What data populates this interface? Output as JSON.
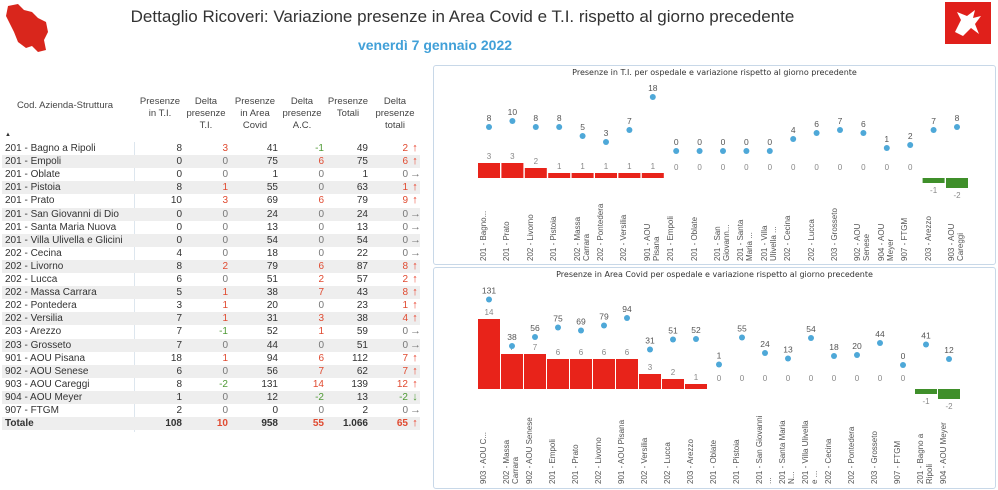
{
  "header": {
    "title": "Dettaglio Ricoveri: Variazione presenze in Area Covid e T.I. rispetto al giorno precedente",
    "date": "venerdì 7 gennaio 2022"
  },
  "colors": {
    "positive": "#e8231a",
    "negative": "#3f8f2a",
    "dot": "#4ea8d8",
    "date": "#41a0d8"
  },
  "table": {
    "headers": [
      "Cod. Azienda-Struttura",
      "Presenze in T.I.",
      "Delta presenze T.I.",
      "Presenze in Area Covid",
      "Delta presenze A.C.",
      "Presenze Totali",
      "Delta presenze totali"
    ],
    "sort_icon": "sort-ascending-icon",
    "rows": [
      [
        "201 - Bagno a Ripoli",
        "8",
        "3",
        "41",
        "-1",
        "49",
        "2"
      ],
      [
        "201 - Empoli",
        "0",
        "0",
        "75",
        "6",
        "75",
        "6"
      ],
      [
        "201 - Oblate",
        "0",
        "0",
        "1",
        "0",
        "1",
        "0"
      ],
      [
        "201 - Pistoia",
        "8",
        "1",
        "55",
        "0",
        "63",
        "1"
      ],
      [
        "201 - Prato",
        "10",
        "3",
        "69",
        "6",
        "79",
        "9"
      ],
      [
        "201 - San Giovanni di Dio",
        "0",
        "0",
        "24",
        "0",
        "24",
        "0"
      ],
      [
        "201 - Santa Maria Nuova",
        "0",
        "0",
        "13",
        "0",
        "13",
        "0"
      ],
      [
        "201 - Villa Ulivella e Glicini",
        "0",
        "0",
        "54",
        "0",
        "54",
        "0"
      ],
      [
        "202 - Cecina",
        "4",
        "0",
        "18",
        "0",
        "22",
        "0"
      ],
      [
        "202 - Livorno",
        "8",
        "2",
        "79",
        "6",
        "87",
        "8"
      ],
      [
        "202 - Lucca",
        "6",
        "0",
        "51",
        "2",
        "57",
        "2"
      ],
      [
        "202 - Massa Carrara",
        "5",
        "1",
        "38",
        "7",
        "43",
        "8"
      ],
      [
        "202 - Pontedera",
        "3",
        "1",
        "20",
        "0",
        "23",
        "1"
      ],
      [
        "202 - Versilia",
        "7",
        "1",
        "31",
        "3",
        "38",
        "4"
      ],
      [
        "203 - Arezzo",
        "7",
        "-1",
        "52",
        "1",
        "59",
        "0"
      ],
      [
        "203 - Grosseto",
        "7",
        "0",
        "44",
        "0",
        "51",
        "0"
      ],
      [
        "901 - AOU Pisana",
        "18",
        "1",
        "94",
        "6",
        "112",
        "7"
      ],
      [
        "902 - AOU Senese",
        "6",
        "0",
        "56",
        "7",
        "62",
        "7"
      ],
      [
        "903 - AOU Careggi",
        "8",
        "-2",
        "131",
        "14",
        "139",
        "12"
      ],
      [
        "904 - AOU Meyer",
        "1",
        "0",
        "12",
        "-2",
        "13",
        "-2"
      ],
      [
        "907 - FTGM",
        "2",
        "0",
        "0",
        "0",
        "2",
        "0"
      ]
    ],
    "total": [
      "Totale",
      "108",
      "10",
      "958",
      "55",
      "1.066",
      "65"
    ]
  },
  "chart_data": [
    {
      "type": "bar",
      "title": "Presenze in T.I. per ospedale e variazione rispetto al giorno precedente",
      "categories": [
        "201 - Bagno...",
        "201 - Prato",
        "202 - Livorno",
        "201 - Pistoia",
        "202 - Massa Carrara",
        "202 - Pontedera",
        "202 - Versilia",
        "901 - AOU Pisana",
        "201 - Empoli",
        "201 - Oblate",
        "201 - San Giovann...",
        "201 - Santa Maria ...",
        "201 - Villa Ulivella ...",
        "202 - Cecina",
        "202 - Lucca",
        "203 - Grosseto",
        "902 - AOU Senese",
        "904 - AOU Meyer",
        "907 - FTGM",
        "203 - Arezzo",
        "903 - AOU Careggi"
      ],
      "series": [
        {
          "type": "bar",
          "values": [
            3,
            3,
            2,
            1,
            1,
            1,
            1,
            1,
            0,
            0,
            0,
            0,
            0,
            0,
            0,
            0,
            0,
            0,
            0,
            -1,
            -2
          ]
        },
        {
          "type": "scatter",
          "values": [
            8,
            10,
            8,
            8,
            5,
            3,
            7,
            18,
            0,
            0,
            0,
            0,
            0,
            4,
            6,
            7,
            6,
            1,
            2,
            7,
            8
          ]
        }
      ]
    },
    {
      "type": "bar",
      "title": "Presenze in Area Covid per ospedale e variazione rispetto al giorno precedente",
      "categories": [
        "903 - AOU C...",
        "202 - Massa Carrara",
        "902 - AOU Senese",
        "201 - Empoli",
        "201 - Prato",
        "202 - Livorno",
        "901 - AOU Pisana",
        "202 - Versilia",
        "202 - Lucca",
        "203 - Arezzo",
        "201 - Oblate",
        "201 - Pistoia",
        "201 - San Giovanni ...",
        "201 - Santa Maria N...",
        "201 - Villa Ulivella e ...",
        "202 - Cecina",
        "202 - Pontedera",
        "203 - Grosseto",
        "907 - FTGM",
        "201 - Bagno a Ripoli",
        "904 - AOU Meyer"
      ],
      "series": [
        {
          "type": "bar",
          "values": [
            14,
            7,
            7,
            6,
            6,
            6,
            6,
            3,
            2,
            1,
            0,
            0,
            0,
            0,
            0,
            0,
            0,
            0,
            0,
            -1,
            -2
          ]
        },
        {
          "type": "scatter",
          "values": [
            131,
            38,
            56,
            75,
            69,
            79,
            94,
            31,
            51,
            52,
            1,
            55,
            24,
            13,
            54,
            18,
            20,
            44,
            0,
            41,
            12
          ]
        }
      ]
    }
  ]
}
